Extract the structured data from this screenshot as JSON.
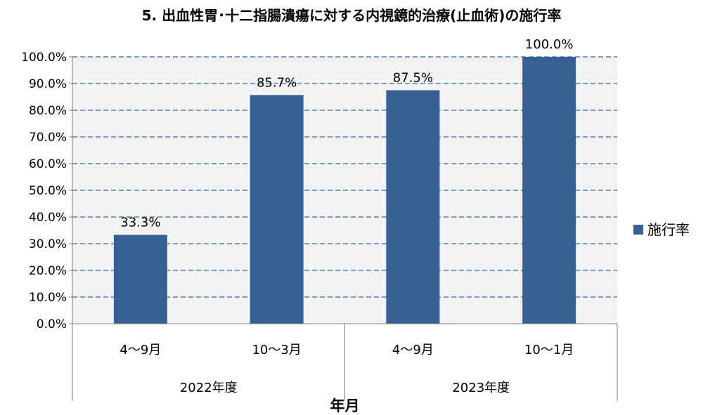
{
  "chart_data": {
    "type": "bar",
    "title": "5. 出血性胃･十二指腸潰瘍に対する内視鏡的治療(止血術)の施行率",
    "xlabel": "年月",
    "ylabel": "",
    "ylim": [
      0,
      100
    ],
    "yticks": [
      "0.0%",
      "10.0%",
      "20.0%",
      "30.0%",
      "40.0%",
      "50.0%",
      "60.0%",
      "70.0%",
      "80.0%",
      "90.0%",
      "100.0%"
    ],
    "categories": [
      "4～9月",
      "10～3月",
      "4～9月",
      "10～1月"
    ],
    "groups": [
      {
        "label": "2022年度",
        "span": 2
      },
      {
        "label": "2023年度",
        "span": 2
      }
    ],
    "series": [
      {
        "name": "施行率",
        "values": [
          33.3,
          85.7,
          87.5,
          100.0
        ],
        "labels": [
          "33.3%",
          "85.7%",
          "87.5%",
          "100.0%"
        ],
        "color": "#366092"
      }
    ],
    "grid": true,
    "grid_style": "dashed",
    "grid_color": "#4F81BD",
    "plot_background": "#F2F2F2",
    "legend": "right"
  }
}
